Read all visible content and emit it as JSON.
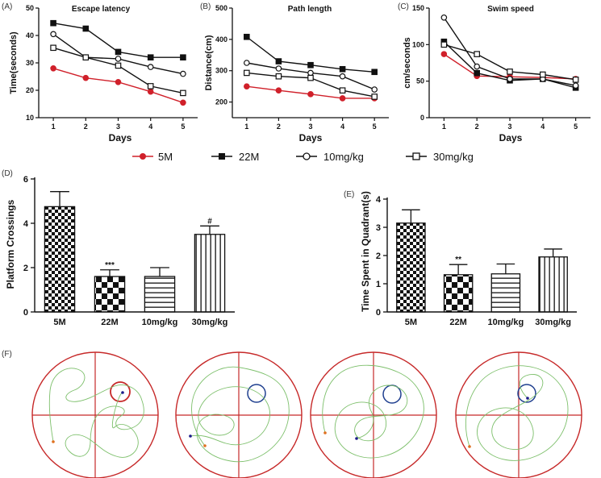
{
  "legend": [
    {
      "name": "5M",
      "color": "#d0202a",
      "marker": "filled-circle"
    },
    {
      "name": "22M",
      "color": "#111111",
      "marker": "filled-square"
    },
    {
      "name": "10mg/kg",
      "color": "#111111",
      "marker": "open-circle"
    },
    {
      "name": "30mg/kg",
      "color": "#111111",
      "marker": "open-square"
    }
  ],
  "chart_data": [
    {
      "panel": "(A)",
      "type": "line",
      "title": "Escape latency",
      "xlabel": "Days",
      "ylabel": "Time(seconds)",
      "x": [
        1,
        2,
        3,
        4,
        5
      ],
      "ylim": [
        10,
        50
      ],
      "yticks": [
        10,
        20,
        30,
        40,
        50
      ],
      "xticks": [
        1,
        2,
        3,
        4,
        5
      ],
      "series": [
        {
          "name": "5M",
          "values": [
            28,
            24.5,
            23,
            19.5,
            15.5
          ]
        },
        {
          "name": "22M",
          "values": [
            44.5,
            42.5,
            34,
            32,
            32
          ]
        },
        {
          "name": "10mg/kg",
          "values": [
            40.5,
            32,
            31.5,
            28.5,
            26
          ]
        },
        {
          "name": "30mg/kg",
          "values": [
            35.5,
            32,
            29,
            21.5,
            19
          ]
        }
      ]
    },
    {
      "panel": "(B)",
      "type": "line",
      "title": "Path length",
      "xlabel": "Days",
      "ylabel": "Distance(cm)",
      "x": [
        1,
        2,
        3,
        4,
        5
      ],
      "ylim": [
        150,
        500
      ],
      "yticks": [
        200,
        300,
        400,
        500
      ],
      "xticks": [
        1,
        2,
        3,
        4,
        5
      ],
      "series": [
        {
          "name": "5M",
          "values": [
            250,
            237,
            225,
            212,
            212
          ]
        },
        {
          "name": "22M",
          "values": [
            408,
            330,
            318,
            305,
            296
          ]
        },
        {
          "name": "10mg/kg",
          "values": [
            325,
            307,
            293,
            282,
            240
          ]
        },
        {
          "name": "30mg/kg",
          "values": [
            293,
            282,
            277,
            237,
            217
          ]
        }
      ]
    },
    {
      "panel": "(C)",
      "type": "line",
      "title": "Swim speed",
      "xlabel": "Days",
      "ylabel": "cm/seconds",
      "x": [
        1,
        2,
        3,
        4,
        5
      ],
      "ylim": [
        0,
        150
      ],
      "yticks": [
        0,
        50,
        100,
        150
      ],
      "xticks": [
        1,
        2,
        3,
        4,
        5
      ],
      "series": [
        {
          "name": "5M",
          "values": [
            87,
            57,
            56,
            55,
            53
          ]
        },
        {
          "name": "22M",
          "values": [
            104,
            61,
            51,
            53,
            41
          ]
        },
        {
          "name": "10mg/kg",
          "values": [
            137,
            70,
            53,
            53,
            44
          ]
        },
        {
          "name": "30mg/kg",
          "values": [
            100,
            87,
            63,
            59,
            52
          ]
        }
      ]
    },
    {
      "panel": "(D)",
      "type": "bar",
      "title": "",
      "xlabel": "",
      "ylabel": "Platform Crossings",
      "categories": [
        "5M",
        "22M",
        "10mg/kg",
        "30mg/kg"
      ],
      "values": [
        4.75,
        1.6,
        1.6,
        3.5
      ],
      "errors": [
        0.68,
        0.3,
        0.4,
        0.38
      ],
      "fills": [
        "checker",
        "bigchecker",
        "hstripes",
        "vstripes"
      ],
      "annotations": [
        "",
        "***",
        "",
        "#"
      ],
      "ylim": [
        0,
        6
      ],
      "yticks": [
        0,
        2,
        4,
        6
      ]
    },
    {
      "panel": "(E)",
      "type": "bar",
      "title": "",
      "xlabel": "",
      "ylabel": "Time Spent in Quadrant(s)",
      "categories": [
        "5M",
        "22M",
        "10mg/kg",
        "30mg/kg"
      ],
      "values": [
        3.15,
        1.32,
        1.35,
        1.95
      ],
      "errors": [
        0.47,
        0.36,
        0.35,
        0.28
      ],
      "fills": [
        "checker",
        "bigchecker",
        "hstripes",
        "vstripes"
      ],
      "annotations": [
        "",
        "**",
        "",
        ""
      ],
      "ylim": [
        0,
        4
      ],
      "yticks": [
        0,
        1,
        2,
        3,
        4
      ]
    }
  ],
  "panel_f": {
    "label": "(F)",
    "count": 4
  }
}
